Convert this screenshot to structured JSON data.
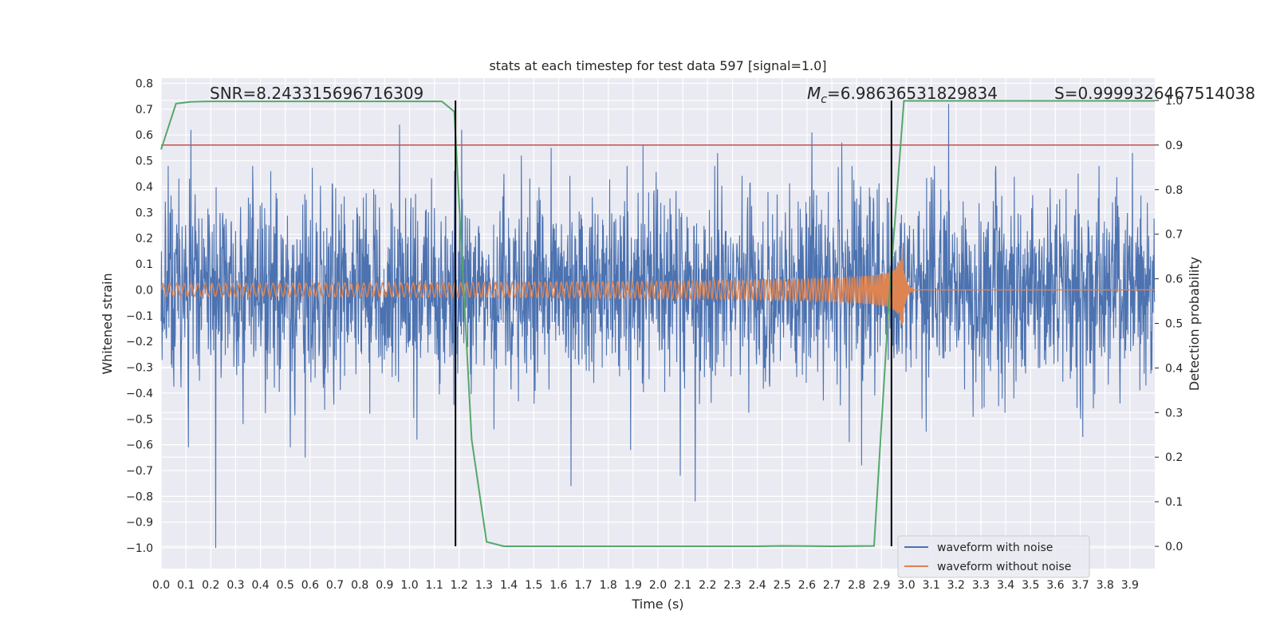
{
  "chart_data": {
    "type": "line",
    "title": "stats at each timestep for test data 597 [signal=1.0]",
    "xlabel": "Time (s)",
    "ylabel": "Whitened strain",
    "y2label": "Detection probability",
    "xlim": [
      0.0,
      4.0
    ],
    "ylim": [
      -1.08,
      0.82
    ],
    "y2lim": [
      -0.05,
      1.05
    ],
    "grid": true,
    "x_ticks": [
      "0.0",
      "0.1",
      "0.2",
      "0.3",
      "0.4",
      "0.5",
      "0.6",
      "0.7",
      "0.8",
      "0.9",
      "1.0",
      "1.1",
      "1.2",
      "1.3",
      "1.4",
      "1.5",
      "1.6",
      "1.7",
      "1.8",
      "1.9",
      "2.0",
      "2.1",
      "2.2",
      "2.3",
      "2.4",
      "2.5",
      "2.6",
      "2.7",
      "2.8",
      "2.9",
      "3.0",
      "3.1",
      "3.2",
      "3.3",
      "3.4",
      "3.5",
      "3.6",
      "3.7",
      "3.8",
      "3.9"
    ],
    "y_ticks": [
      "0.8",
      "0.7",
      "0.6",
      "0.5",
      "0.4",
      "0.3",
      "0.2",
      "0.1",
      "0.0",
      "−0.1",
      "−0.2",
      "−0.3",
      "−0.4",
      "−0.5",
      "−0.6",
      "−0.7",
      "−0.8",
      "−0.9",
      "−1.0"
    ],
    "y2_ticks": [
      "1.0",
      "0.9",
      "0.8",
      "0.7",
      "0.6",
      "0.5",
      "0.4",
      "0.3",
      "0.2",
      "0.1",
      "0.0"
    ],
    "annotations": {
      "snr": "SNR=8.243315696716309",
      "mc_symbol": "M",
      "mc_sub": "c",
      "mc_value": "=6.98636531829834",
      "s": "S=0.9999326467514038"
    },
    "legend": {
      "placement": "lower-right",
      "entries": [
        "waveform with noise",
        "waveform without noise"
      ]
    },
    "series": [
      {
        "name": "waveform with noise",
        "color": "#4c72b0",
        "kind": "noise",
        "x_range": [
          0.0,
          4.0
        ],
        "typical_range": [
          -0.3,
          0.3
        ],
        "spikes": [
          [
            0.12,
            0.62
          ],
          [
            0.22,
            -1.0
          ],
          [
            0.11,
            -0.61
          ],
          [
            0.33,
            -0.52
          ],
          [
            0.58,
            0.64
          ],
          [
            0.58,
            -0.65
          ],
          [
            0.52,
            -0.61
          ],
          [
            0.96,
            0.64
          ],
          [
            1.03,
            -0.58
          ],
          [
            1.21,
            0.62
          ],
          [
            1.34,
            -0.54
          ],
          [
            1.57,
            0.55
          ],
          [
            1.65,
            -0.67
          ],
          [
            1.65,
            0.63
          ],
          [
            1.65,
            -0.76
          ],
          [
            1.89,
            -0.62
          ],
          [
            1.94,
            0.56
          ],
          [
            2.09,
            -0.72
          ],
          [
            2.15,
            -0.82
          ],
          [
            2.62,
            0.61
          ],
          [
            2.77,
            -0.59
          ],
          [
            2.82,
            -0.68
          ],
          [
            2.74,
            0.57
          ],
          [
            3.17,
            0.72
          ],
          [
            3.08,
            -0.55
          ],
          [
            3.71,
            -0.57
          ],
          [
            3.91,
            0.53
          ],
          [
            2.24,
            0.53
          ],
          [
            1.45,
            0.52
          ],
          [
            0.84,
            -0.48
          ]
        ]
      },
      {
        "name": "waveform without noise",
        "color": "#dd8452",
        "kind": "chirp",
        "merger_time": 2.98,
        "ringdown_end": 3.03,
        "amplitude_start": 0.025,
        "amplitude_peak": 0.18,
        "frequency_start": 35
      },
      {
        "name": "Detection probability",
        "color": "#55a868",
        "axis": "right",
        "x": [
          0.0,
          0.06,
          0.12,
          0.2,
          0.4,
          0.6,
          0.8,
          1.0,
          1.13,
          1.18,
          1.25,
          1.31,
          1.38,
          1.6,
          2.0,
          2.4,
          2.5,
          2.7,
          2.87,
          2.93,
          2.99,
          3.1,
          3.5,
          3.9,
          4.0
        ],
        "y": [
          0.89,
          0.993,
          0.997,
          0.998,
          0.998,
          0.998,
          0.998,
          0.998,
          0.998,
          0.975,
          0.24,
          0.01,
          0.0,
          0.0,
          0.0,
          0.0,
          0.001,
          0.0,
          0.001,
          0.55,
          0.999,
          0.999,
          0.999,
          0.999,
          0.999
        ]
      },
      {
        "name": "threshold",
        "color": "#c44e52",
        "axis": "right",
        "y": 0.9
      }
    ],
    "vertical_lines": [
      1.185,
      2.94
    ]
  }
}
